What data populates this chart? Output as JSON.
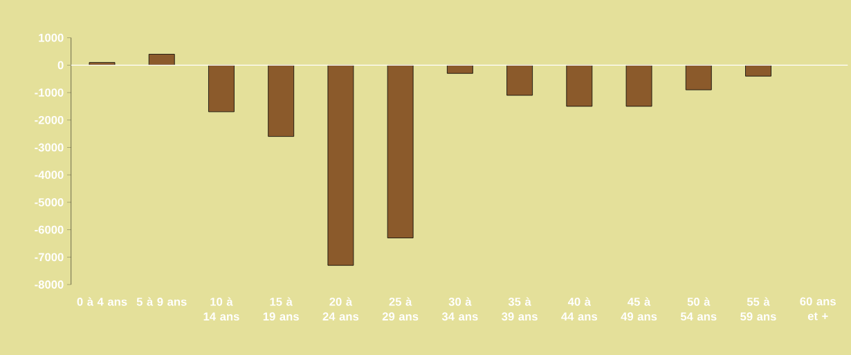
{
  "chart_data": {
    "type": "bar",
    "categories": [
      "0 à 4 ans",
      "5 à 9 ans",
      "10 à 14 ans",
      "15 à 19 ans",
      "20 à 24 ans",
      "25 à 29 ans",
      "30 à 34 ans",
      "35 à 39 ans",
      "40 à 44 ans",
      "45 à 49 ans",
      "50 à 54 ans",
      "55 à 59 ans",
      "60 ans et +"
    ],
    "values": [
      100,
      400,
      -1700,
      -2600,
      -7300,
      -6300,
      -300,
      -1100,
      -1500,
      -1500,
      -900,
      -400,
      null
    ],
    "color": "#8b5a2b",
    "ylim": [
      -8000,
      1000
    ],
    "yticks": [
      -8000,
      -7000,
      -6000,
      -5000,
      -4000,
      -3000,
      -2000,
      -1000,
      0,
      1000
    ]
  }
}
